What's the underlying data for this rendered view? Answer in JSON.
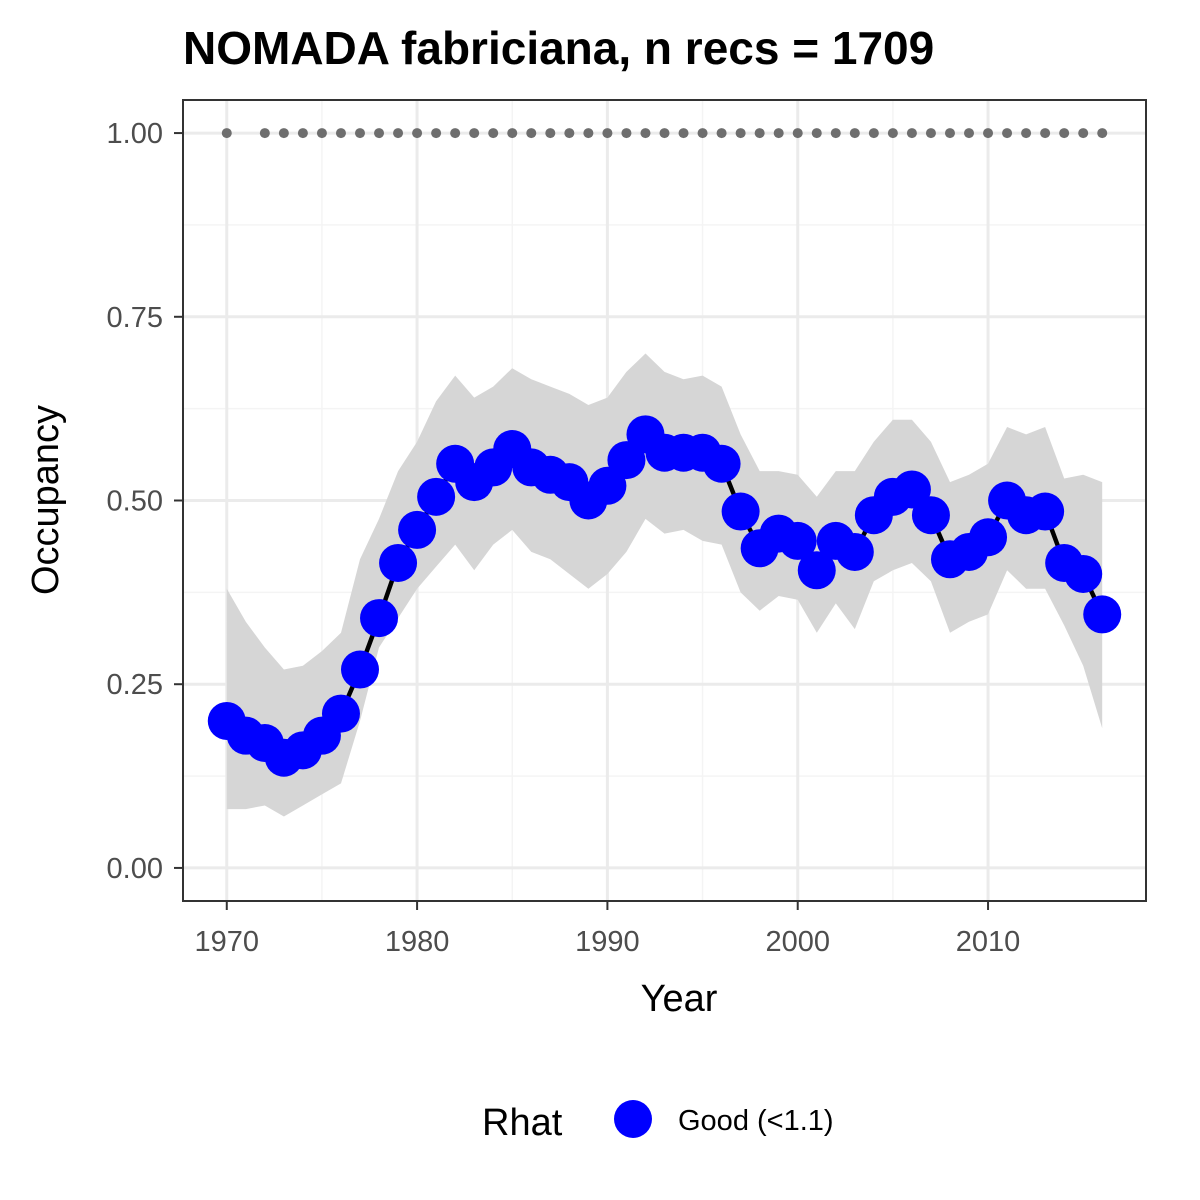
{
  "chart_data": {
    "type": "line",
    "title": "NOMADA fabriciana, n recs = 1709",
    "xlabel": "Year",
    "ylabel": "Occupancy",
    "xlim": [
      1967.7,
      2018.3
    ],
    "ylim": [
      -0.045,
      1.045
    ],
    "x_ticks": [
      1970,
      1980,
      1990,
      2000,
      2010
    ],
    "x_tick_labels": [
      "1970",
      "1980",
      "1990",
      "2000",
      "2010"
    ],
    "y_ticks": [
      0,
      0.25,
      0.5,
      0.75,
      1.0
    ],
    "y_tick_labels": [
      "0.00",
      "0.25",
      "0.50",
      "0.75",
      "1.00"
    ],
    "grid": true,
    "colors": {
      "points": "#0000ff",
      "line": "#000000",
      "ribbon": "#d6d6d6",
      "reference": "#6e6e6e",
      "panel_border": "#333333",
      "grid_major": "#ebebeb",
      "grid_minor": "#f4f4f4"
    },
    "x": [
      1970,
      1971,
      1972,
      1973,
      1974,
      1975,
      1976,
      1977,
      1978,
      1979,
      1980,
      1981,
      1982,
      1983,
      1984,
      1985,
      1986,
      1987,
      1988,
      1989,
      1990,
      1991,
      1992,
      1993,
      1994,
      1995,
      1996,
      1997,
      1998,
      1999,
      2000,
      2001,
      2002,
      2003,
      2004,
      2005,
      2006,
      2007,
      2008,
      2009,
      2010,
      2011,
      2012,
      2013,
      2014,
      2015,
      2016
    ],
    "series": [
      {
        "name": "Good (<1.1)",
        "y": [
          0.2,
          0.18,
          0.17,
          0.15,
          0.16,
          0.18,
          0.21,
          0.27,
          0.34,
          0.415,
          0.46,
          0.505,
          0.55,
          0.525,
          0.545,
          0.57,
          0.545,
          0.535,
          0.525,
          0.5,
          0.52,
          0.555,
          0.59,
          0.565,
          0.565,
          0.565,
          0.55,
          0.485,
          0.435,
          0.455,
          0.445,
          0.405,
          0.445,
          0.43,
          0.48,
          0.505,
          0.515,
          0.48,
          0.42,
          0.43,
          0.45,
          0.5,
          0.48,
          0.485,
          0.415,
          0.4,
          0.345
        ],
        "lower": [
          0.08,
          0.08,
          0.085,
          0.07,
          0.085,
          0.1,
          0.115,
          0.2,
          0.3,
          0.34,
          0.38,
          0.41,
          0.44,
          0.405,
          0.44,
          0.46,
          0.43,
          0.42,
          0.4,
          0.38,
          0.4,
          0.43,
          0.475,
          0.455,
          0.46,
          0.445,
          0.44,
          0.375,
          0.35,
          0.37,
          0.365,
          0.32,
          0.36,
          0.325,
          0.39,
          0.405,
          0.415,
          0.39,
          0.32,
          0.335,
          0.345,
          0.405,
          0.38,
          0.38,
          0.33,
          0.275,
          0.19
        ],
        "upper": [
          0.38,
          0.335,
          0.3,
          0.27,
          0.275,
          0.295,
          0.32,
          0.42,
          0.475,
          0.54,
          0.58,
          0.635,
          0.67,
          0.64,
          0.655,
          0.68,
          0.665,
          0.655,
          0.645,
          0.63,
          0.64,
          0.675,
          0.7,
          0.675,
          0.665,
          0.67,
          0.655,
          0.59,
          0.54,
          0.54,
          0.535,
          0.505,
          0.54,
          0.54,
          0.58,
          0.61,
          0.61,
          0.58,
          0.525,
          0.535,
          0.55,
          0.6,
          0.59,
          0.6,
          0.53,
          0.535,
          0.525
        ]
      }
    ],
    "reference": {
      "y": 1.0,
      "x": [
        1970,
        1972,
        1973,
        1974,
        1975,
        1976,
        1977,
        1978,
        1979,
        1980,
        1981,
        1982,
        1983,
        1984,
        1985,
        1986,
        1987,
        1988,
        1989,
        1990,
        1991,
        1992,
        1993,
        1994,
        1995,
        1996,
        1997,
        1998,
        1999,
        2000,
        2001,
        2002,
        2003,
        2004,
        2005,
        2006,
        2007,
        2008,
        2009,
        2010,
        2011,
        2012,
        2013,
        2014,
        2015,
        2016
      ]
    },
    "legend": {
      "title": "Rhat",
      "placement": "bottom",
      "items": [
        {
          "label": "Good (<1.1)",
          "color": "#0000ff"
        }
      ]
    }
  }
}
